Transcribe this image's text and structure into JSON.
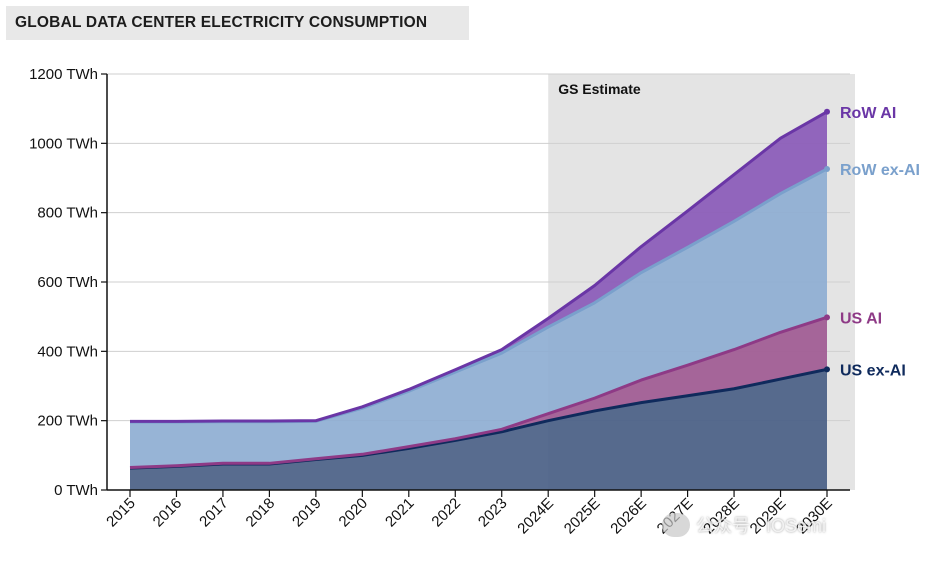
{
  "title": "GLOBAL DATA CENTER ELECTRICITY CONSUMPTION",
  "watermark": "公众号 · IOSemi",
  "chart_data": {
    "type": "area",
    "stacked": true,
    "categories": [
      "2015",
      "2016",
      "2017",
      "2018",
      "2019",
      "2020",
      "2021",
      "2022",
      "2023",
      "2024E",
      "2025E",
      "2026E",
      "2027E",
      "2028E",
      "2029E",
      "2030E"
    ],
    "yticks": [
      0,
      200,
      400,
      600,
      800,
      1000,
      1200
    ],
    "ytick_labels": [
      "0 TWh",
      "200 TWh",
      "400 TWh",
      "600 TWh",
      "800 TWh",
      "1000 TWh",
      "1200 TWh"
    ],
    "ylim": [
      0,
      1200
    ],
    "grid": true,
    "estimate_region": {
      "label": "GS Estimate",
      "from": "2024E",
      "to": "2030E"
    },
    "series": [
      {
        "name": "US ex-AI",
        "color": "#0f2a5c",
        "fill": "#4a5f85",
        "values": [
          63,
          68,
          75,
          75,
          88,
          100,
          120,
          143,
          168,
          200,
          228,
          252,
          272,
          292,
          320,
          348
        ]
      },
      {
        "name": "US AI",
        "color": "#8e3a86",
        "fill": "#a05a93",
        "values": [
          2,
          2,
          2,
          2,
          2,
          3,
          5,
          5,
          7,
          20,
          37,
          65,
          88,
          113,
          135,
          150
        ]
      },
      {
        "name": "RoW ex-AI",
        "color": "#7aa0cc",
        "fill": "#8eaed2",
        "values": [
          131,
          126,
          120,
          120,
          108,
          133,
          160,
          192,
          220,
          250,
          275,
          310,
          340,
          370,
          400,
          428
        ]
      },
      {
        "name": "RoW AI",
        "color": "#6a36a6",
        "fill": "#8a5ab8",
        "values": [
          2,
          2,
          2,
          2,
          2,
          4,
          5,
          7,
          10,
          25,
          50,
          75,
          105,
          135,
          160,
          165
        ]
      }
    ]
  }
}
